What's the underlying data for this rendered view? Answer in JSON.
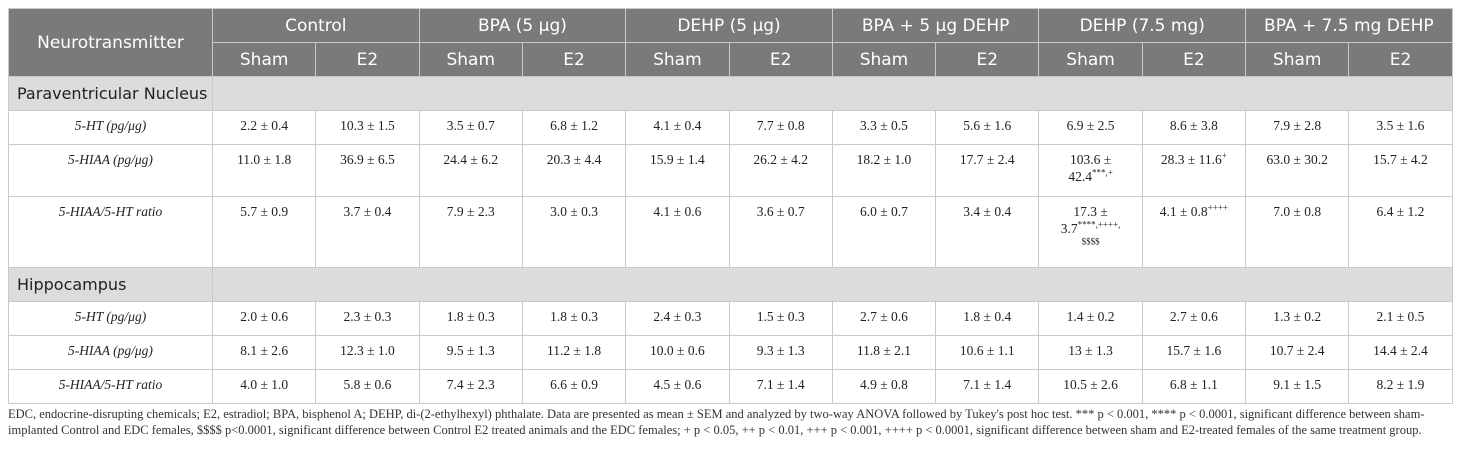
{
  "table": {
    "header": {
      "first": "Neurotransmitter",
      "groups": [
        "Control",
        "BPA (5 μg)",
        "DEHP (5 μg)",
        "BPA + 5 μg DEHP",
        "DEHP (7.5 mg)",
        "BPA + 7.5 mg DEHP"
      ],
      "sub": [
        "Sham",
        "E2"
      ]
    },
    "sections": [
      {
        "title": "Paraventricular Nucleus",
        "rows": [
          {
            "label": "5-HT (pg/μg)",
            "cells": [
              "2.2 ± 0.4",
              "10.3 ± 1.5",
              "3.5 ± 0.7",
              "6.8 ± 1.2",
              "4.1 ± 0.4",
              "7.7 ± 0.8",
              "3.3 ± 0.5",
              "5.6 ± 1.6",
              "6.9 ± 2.5",
              "8.6 ± 3.8",
              "7.9 ± 2.8",
              "3.5 ± 1.6"
            ]
          },
          {
            "label": "5-HIAA (pg/μg)",
            "cells": [
              "11.0 ± 1.8",
              "36.9 ± 6.5",
              "24.4 ± 6.2",
              "20.3 ± 4.4",
              "15.9 ± 1.4",
              "26.2 ± 4.2",
              "18.2 ± 1.0",
              "17.7 ± 2.4",
              "103.6 ±",
              "28.3 ± 11.6",
              "63.0 ± 30.2",
              "15.7 ± 4.2"
            ],
            "cell8_line2": "42.4",
            "cell8_sup": "***,+",
            "cell9_sup": "+"
          },
          {
            "label": "5-HIAA/5-HT ratio",
            "cells": [
              "5.7 ± 0.9",
              "3.7 ± 0.4",
              "7.9 ± 2.3",
              "3.0 ± 0.3",
              "4.1 ± 0.6",
              "3.6 ± 0.7",
              "6.0 ± 0.7",
              "3.4 ± 0.4",
              "17.3 ±",
              "4.1 ± 0.8",
              "7.0 ± 0.8",
              "6.4 ± 1.2"
            ],
            "cell8_line2": "3.7",
            "cell8_sup": "****,++++,",
            "cell8_line3": "$$$$",
            "cell9_sup": "++++"
          }
        ]
      },
      {
        "title": "Hippocampus",
        "rows": [
          {
            "label": "5-HT (pg/μg)",
            "cells": [
              "2.0 ± 0.6",
              "2.3 ± 0.3",
              "1.8 ± 0.3",
              "1.8 ± 0.3",
              "2.4 ± 0.3",
              "1.5 ± 0.3",
              "2.7 ± 0.6",
              "1.8 ± 0.4",
              "1.4 ± 0.2",
              "2.7 ± 0.6",
              "1.3 ± 0.2",
              "2.1 ± 0.5"
            ]
          },
          {
            "label": "5-HIAA (pg/μg)",
            "cells": [
              "8.1 ± 2.6",
              "12.3 ± 1.0",
              "9.5 ± 1.3",
              "11.2 ± 1.8",
              "10.0 ± 0.6",
              "9.3 ± 1.3",
              "11.8 ± 2.1",
              "10.6 ± 1.1",
              "13 ± 1.3",
              "15.7 ± 1.6",
              "10.7 ± 2.4",
              "14.4 ± 2.4"
            ]
          },
          {
            "label": "5-HIAA/5-HT ratio",
            "cells": [
              "4.0 ± 1.0",
              "5.8 ± 0.6",
              "7.4 ± 2.3",
              "6.6 ± 0.9",
              "4.5 ± 0.6",
              "7.1 ± 1.4",
              "4.9 ± 0.8",
              "7.1 ± 1.4",
              "10.5 ± 2.6",
              "6.8 ± 1.1",
              "9.1 ± 1.5",
              "8.2 ± 1.9"
            ]
          }
        ]
      }
    ]
  },
  "footnote": "EDC, endocrine-disrupting chemicals; E2, estradiol; BPA, bisphenol A; DEHP, di-(2-ethylhexyl) phthalate. Data are presented as mean ± SEM and analyzed by two-way ANOVA followed by Tukey's post hoc test. *** p < 0.001, **** p < 0.0001, significant difference between sham-implanted Control and EDC females, $$$$ p<0.0001, significant difference between Control E2 treated animals and the EDC females; + p < 0.05, ++ p < 0.01, +++ p < 0.001, ++++ p < 0.0001, significant difference between sham and E2-treated females of the same treatment group.",
  "colors": {
    "header_bg": "#7a7a7a",
    "section_bg": "#dcdcdc",
    "border": "#c9c9c9"
  }
}
